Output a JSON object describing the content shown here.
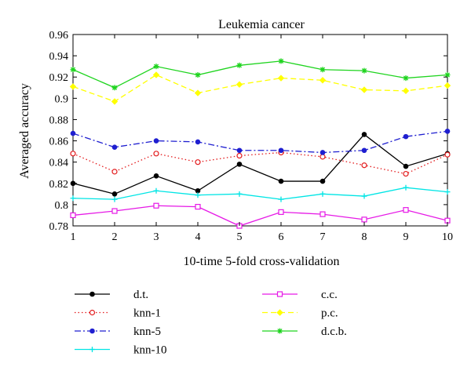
{
  "chart_data": {
    "type": "line",
    "title": "Leukemia cancer",
    "xlabel": "10-time 5-fold cross-validation",
    "ylabel": "Averaged accuracy",
    "x": [
      1,
      2,
      3,
      4,
      5,
      6,
      7,
      8,
      9,
      10
    ],
    "xlim": [
      1,
      10
    ],
    "ylim": [
      0.78,
      0.96
    ],
    "yticks": [
      "0.78",
      "0.8",
      "0.82",
      "0.84",
      "0.86",
      "0.88",
      "0.9",
      "0.92",
      "0.94",
      "0.96"
    ],
    "xticks": [
      "1",
      "2",
      "3",
      "4",
      "5",
      "6",
      "7",
      "8",
      "9",
      "10"
    ],
    "grid": false,
    "legend_position": "below",
    "series": [
      {
        "name": "d.t.",
        "color": "#000000",
        "dash": "solid",
        "marker": "dot",
        "values": [
          0.82,
          0.81,
          0.827,
          0.813,
          0.838,
          0.822,
          0.822,
          0.866,
          0.836,
          0.848
        ]
      },
      {
        "name": "knn-1",
        "color": "#e31a1c",
        "dash": "dotted",
        "marker": "circle",
        "values": [
          0.848,
          0.831,
          0.848,
          0.84,
          0.846,
          0.849,
          0.845,
          0.837,
          0.829,
          0.847
        ]
      },
      {
        "name": "knn-5",
        "color": "#1f1fd0",
        "dash": "dashdot",
        "marker": "dot",
        "values": [
          0.867,
          0.854,
          0.86,
          0.859,
          0.851,
          0.851,
          0.849,
          0.851,
          0.864,
          0.869
        ]
      },
      {
        "name": "knn-10",
        "color": "#00e5e5",
        "dash": "solid",
        "marker": "plus",
        "values": [
          0.806,
          0.805,
          0.813,
          0.809,
          0.81,
          0.805,
          0.81,
          0.808,
          0.816,
          0.812
        ]
      },
      {
        "name": "c.c.",
        "color": "#e619e6",
        "dash": "solid",
        "marker": "square",
        "values": [
          0.79,
          0.794,
          0.799,
          0.798,
          0.78,
          0.793,
          0.791,
          0.786,
          0.795,
          0.785
        ]
      },
      {
        "name": "p.c.",
        "color": "#ffff00",
        "dash": "dashed",
        "marker": "diamond",
        "values": [
          0.911,
          0.897,
          0.922,
          0.905,
          0.913,
          0.919,
          0.917,
          0.908,
          0.907,
          0.912
        ]
      },
      {
        "name": "d.c.b.",
        "color": "#1ed41e",
        "dash": "solid",
        "marker": "star",
        "values": [
          0.927,
          0.91,
          0.93,
          0.922,
          0.931,
          0.935,
          0.927,
          0.926,
          0.919,
          0.922
        ]
      }
    ]
  }
}
